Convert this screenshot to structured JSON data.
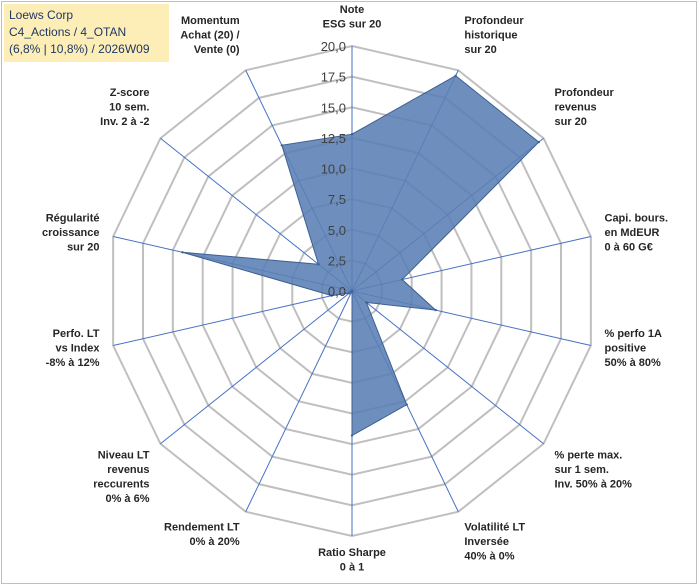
{
  "title_box": {
    "line1": "Loews Corp",
    "line2": "C4_Actions / 4_OTAN",
    "line3": "(6,8% | 10,8%) / 2026W09"
  },
  "chart_data": {
    "type": "radar",
    "r_range": [
      0,
      20
    ],
    "tick_step": 2.5,
    "tick_labels": [
      "0,0",
      "2,5",
      "5,0",
      "7,5",
      "10,0",
      "12,5",
      "15,0",
      "17,5",
      "20,0"
    ],
    "categories": [
      [
        "Note",
        "ESG sur 20"
      ],
      [
        "Profondeur",
        "historique",
        "sur 20"
      ],
      [
        "Profondeur",
        "revenus",
        "sur 20"
      ],
      [
        "Capi. bours.",
        "en MdEUR",
        "0 à 60 G€"
      ],
      [
        "% perfo 1A",
        "positive",
        "50% à 80%"
      ],
      [
        "% perte max.",
        "sur 1 sem.",
        "Inv. 50% à 20%"
      ],
      [
        "Volatilité LT",
        "Inversée",
        "40% à 0%"
      ],
      [
        "Ratio Sharpe",
        "0 à 1"
      ],
      [
        "Rendement LT",
        "0% à 20%"
      ],
      [
        "Niveau LT",
        "revenus",
        "reccurents",
        "0% à 6%"
      ],
      [
        "Perfo. LT",
        "vs Index",
        "-8% à 12%"
      ],
      [
        "Régularité",
        "croissance",
        "sur 20"
      ],
      [
        "Z-score",
        "10 sem.",
        "Inv. 2 à -2"
      ],
      [
        "Momentum",
        "Achat (20) /",
        "Vente (0)"
      ]
    ],
    "series": [
      {
        "values": [
          12.8,
          19.5,
          19.5,
          4.2,
          7.0,
          1.5,
          10.3,
          11.8,
          0.0,
          0.3,
          1.7,
          14.2,
          3.5,
          13.2
        ]
      }
    ],
    "grid": true,
    "fill_color": "#5a7fb5",
    "edge_color": "#3e5f91",
    "axis_color": "#4472c4",
    "grid_color": "#bfbfbf"
  }
}
